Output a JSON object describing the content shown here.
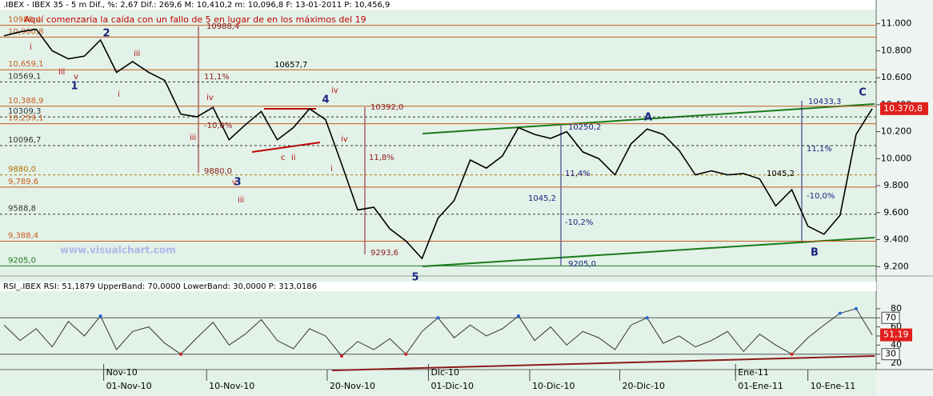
{
  "chart_data": [
    {
      "type": "line",
      "title": ".IBEX - IBEX 35 - 5 m Dif., %: 2,67 Dif.: 269,6 M: 10,410,2 m: 10,096,8 F: 13-01-2011 P: 10,456,9",
      "subtitle": "Aquí comenzaría la caída con un fallo de 5 en lugar de en los máximos del 19",
      "watermark": "www.visualchart.com",
      "color": "#000000",
      "values": [
        10911,
        10940,
        10960,
        10800,
        10740,
        10760,
        10880,
        10640,
        10720,
        10640,
        10580,
        10330,
        10310,
        10380,
        10140,
        10250,
        10350,
        10140,
        10230,
        10370,
        10290,
        9960,
        9620,
        9640,
        9480,
        9390,
        9260,
        9560,
        9690,
        9990,
        9930,
        10020,
        10230,
        10180,
        10150,
        10200,
        10050,
        10000,
        9880,
        10110,
        10220,
        10180,
        10060,
        9880,
        9910,
        9880,
        9890,
        9850,
        9650,
        9770,
        9500,
        9440,
        9580,
        10180,
        10370
      ],
      "xlim": [
        0,
        54
      ],
      "ylim": [
        9160,
        11105
      ],
      "yticks": [
        {
          "value": 9200,
          "label": "9.200"
        },
        {
          "value": 9400,
          "label": "9.400"
        },
        {
          "value": 9600,
          "label": "9.600"
        },
        {
          "value": 9800,
          "label": "9.800"
        },
        {
          "value": 10000,
          "label": "10.000"
        },
        {
          "value": 10200,
          "label": "10.200"
        },
        {
          "value": 10400,
          "label": "10.400"
        },
        {
          "value": 10600,
          "label": "10.600"
        },
        {
          "value": 10800,
          "label": "10.800"
        },
        {
          "value": 11000,
          "label": "11.000"
        }
      ],
      "last_value": {
        "value": 10370.8,
        "label": "10.370,8"
      },
      "levels": [
        {
          "value": 10988.4,
          "label": "10988,4",
          "color": "#c85a1e",
          "dashed": false
        },
        {
          "value": 10900.8,
          "label": "10,900,8",
          "color": "#c85a1e",
          "dashed": false
        },
        {
          "value": 10659.1,
          "label": "10,659,1",
          "color": "#c85a1e",
          "dashed": false
        },
        {
          "value": 10569.1,
          "label": "10569,1",
          "color": "#333333",
          "dashed": true
        },
        {
          "value": 10388.9,
          "label": "10,388,9",
          "color": "#c85a1e",
          "dashed": false
        },
        {
          "value": 10309.3,
          "label": "10309,3",
          "color": "#333333",
          "dashed": true
        },
        {
          "value": 10259.1,
          "label": "10,259,1",
          "color": "#c85a1e",
          "dashed": false
        },
        {
          "value": 10096.7,
          "label": "10096,7",
          "color": "#333333",
          "dashed": true
        },
        {
          "value": 9880.0,
          "label": "9880,0",
          "color": "#b07000",
          "dashed": true
        },
        {
          "value": 9789.6,
          "label": "9,789,6",
          "color": "#c85a1e",
          "dashed": false
        },
        {
          "value": 9588.8,
          "label": "9588,8",
          "color": "#333333",
          "dashed": true
        },
        {
          "value": 9388.4,
          "label": "9,388,4",
          "color": "#c85a1e",
          "dashed": false
        },
        {
          "value": 9205.0,
          "label": "9205,0",
          "color": "#1a7a1a",
          "dashed": false
        }
      ],
      "annotations": [
        {
          "text": "1",
          "color": "#1a237e"
        },
        {
          "text": "2",
          "color": "#1a237e"
        },
        {
          "text": "3",
          "color": "#1a237e"
        },
        {
          "text": "4",
          "color": "#1a237e"
        },
        {
          "text": "5",
          "color": "#1a237e"
        },
        {
          "text": "A",
          "color": "#1a237e"
        },
        {
          "text": "B",
          "color": "#1a237e"
        },
        {
          "text": "C",
          "color": "#1a237e"
        },
        {
          "text": "i",
          "color": "#b01010"
        },
        {
          "text": "iii",
          "color": "#b01010"
        },
        {
          "text": "v",
          "color": "#b01010"
        },
        {
          "text": "i",
          "color": "#b01010"
        },
        {
          "text": "iii",
          "color": "#b01010"
        },
        {
          "text": "iii",
          "color": "#b01010"
        },
        {
          "text": "iv",
          "color": "#b01010"
        },
        {
          "text": "v",
          "color": "#b01010"
        },
        {
          "text": "iii",
          "color": "#b01010"
        },
        {
          "text": "iv",
          "color": "#b01010"
        },
        {
          "text": "iv",
          "color": "#b01010"
        },
        {
          "text": "i",
          "color": "#b01010"
        },
        {
          "text": "c",
          "color": "#b01010"
        },
        {
          "text": "ii",
          "color": "#b01010"
        },
        {
          "text": "11,1%",
          "color": "#8b1a1a"
        },
        {
          "text": "-10,0%",
          "color": "#8b1a1a"
        },
        {
          "text": "11,8%",
          "color": "#8b1a1a"
        },
        {
          "text": "-10,2%",
          "color": "#1a237e"
        },
        {
          "text": "1045,2",
          "color": "#1a237e"
        },
        {
          "text": "11,4%",
          "color": "#1a237e"
        },
        {
          "text": "10657,7",
          "color": "#000000"
        },
        {
          "text": "10392,0",
          "color": "#8b1a1a"
        },
        {
          "text": "9293,6",
          "color": "#8b1a1a"
        },
        {
          "text": "10250,2",
          "color": "#1a237e"
        },
        {
          "text": "9205,0",
          "color": "#1a237e"
        },
        {
          "text": "10433,3",
          "color": "#1a237e"
        },
        {
          "text": "11,1%",
          "color": "#1a237e"
        },
        {
          "text": "-10,0%",
          "color": "#1a237e"
        },
        {
          "text": "1045,2",
          "color": "#000000"
        },
        {
          "text": "10988,4",
          "color": "#8b1a1a"
        },
        {
          "text": "9880,0",
          "color": "#8b1a1a"
        }
      ]
    },
    {
      "type": "line",
      "title": "RSI_.IBEX RSI: 51,1879 UpperBand: 70,0000 LowerBand: 30,0000 P: 313,0186",
      "color": "#333333",
      "values": [
        62,
        45,
        58,
        38,
        66,
        50,
        72,
        35,
        55,
        60,
        42,
        30,
        48,
        65,
        40,
        52,
        68,
        45,
        36,
        58,
        50,
        28,
        44,
        35,
        47,
        30,
        55,
        70,
        48,
        62,
        50,
        58,
        72,
        45,
        60,
        40,
        55,
        48,
        35,
        62,
        70,
        42,
        50,
        38,
        45,
        55,
        33,
        52,
        40,
        30,
        48,
        62,
        75,
        80,
        51.19
      ],
      "xlim": [
        0,
        54
      ],
      "ylim": [
        13,
        94
      ],
      "yticks": [
        20,
        30,
        40,
        50,
        60,
        70,
        80
      ],
      "bands": [
        70,
        30
      ],
      "last_value": {
        "value": 51.19,
        "label": "51,19"
      },
      "xticks": [
        {
          "value": 6.2,
          "label": "01-Nov-10"
        },
        {
          "value": 12.6,
          "label": "10-Nov-10"
        },
        {
          "value": 20.1,
          "label": "20-Nov-10"
        },
        {
          "value": 26.4,
          "label": "01-Dic-10"
        },
        {
          "value": 32.7,
          "label": "10-Dic-10"
        },
        {
          "value": 38.3,
          "label": "20-Dic-10"
        },
        {
          "value": 45.5,
          "label": "01-Ene-11"
        },
        {
          "value": 50,
          "label": "10-Ene-11"
        }
      ],
      "month_ticks": [
        {
          "value": 6.2,
          "label": "Nov-10"
        },
        {
          "value": 26.4,
          "label": "Dic-10"
        },
        {
          "value": 45.5,
          "label": "Ene-11"
        }
      ]
    }
  ]
}
